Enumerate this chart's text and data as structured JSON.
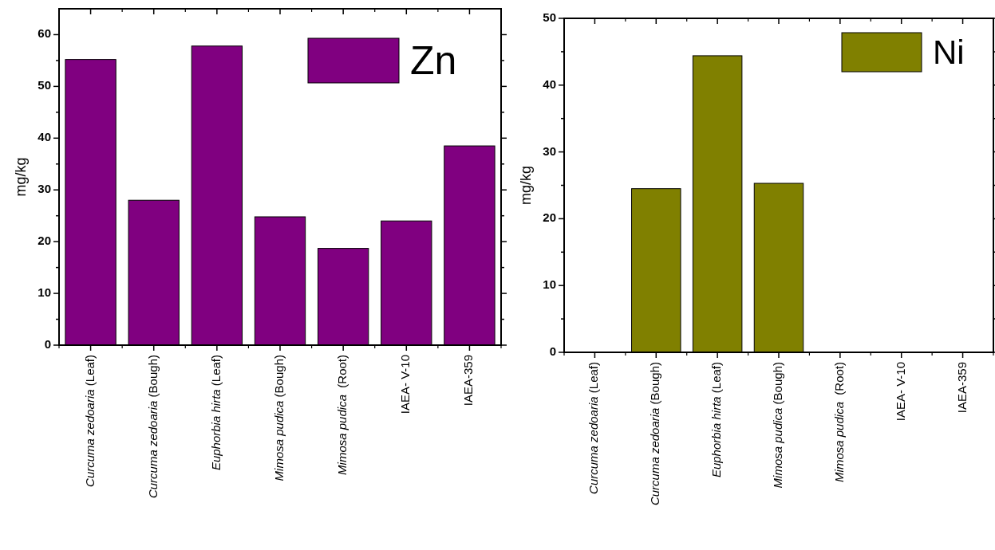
{
  "chart_data": [
    {
      "type": "bar",
      "categories": [
        "Curcuma zedoaria (Leaf)",
        "Curcuma zedoaria (Bough)",
        "Euphorbia hirta (Leaf)",
        "Mimosa pudica (Bough)",
        "Mimosa pudica  (Root)",
        "IAEA- V-10",
        "IAEA-359"
      ],
      "series": [
        {
          "name": "Zn",
          "color": "#800080",
          "values": [
            55.2,
            28.0,
            57.8,
            24.8,
            18.7,
            24.0,
            38.5
          ]
        }
      ],
      "ylabel": "mg/kg",
      "ylim": [
        0,
        65
      ],
      "yticks": [
        0,
        {
          "value": 5,
          "label": null
        },
        10,
        {
          "value": 15,
          "label": null
        },
        20,
        {
          "value": 25,
          "label": null
        },
        30,
        {
          "value": 35,
          "label": null
        },
        40,
        {
          "value": 45,
          "label": null
        },
        50,
        {
          "value": 55,
          "label": null
        },
        60
      ],
      "legend": "top right"
    },
    {
      "type": "bar",
      "categories": [
        "Curcuma zedoaria (Leaf)",
        "Curcuma zedoaria (Bough)",
        "Euphorbia hirta (Leaf)",
        "Mimosa pudica (Bough)",
        "Mimosa pudica  (Root)",
        "IAEA- V-10",
        "IAEA-359"
      ],
      "series": [
        {
          "name": "Ni",
          "color": "#808000",
          "values": [
            null,
            24.5,
            44.4,
            25.3,
            null,
            null,
            null
          ]
        }
      ],
      "ylabel": "mg/kg",
      "ylim": [
        0,
        50
      ],
      "yticks": [
        0,
        {
          "value": 5,
          "label": null
        },
        10,
        {
          "value": 15,
          "label": null
        },
        20,
        {
          "value": 25,
          "label": null
        },
        30,
        {
          "value": 35,
          "label": null
        },
        40,
        {
          "value": 45,
          "label": null
        },
        50
      ],
      "legend": "top right"
    }
  ]
}
